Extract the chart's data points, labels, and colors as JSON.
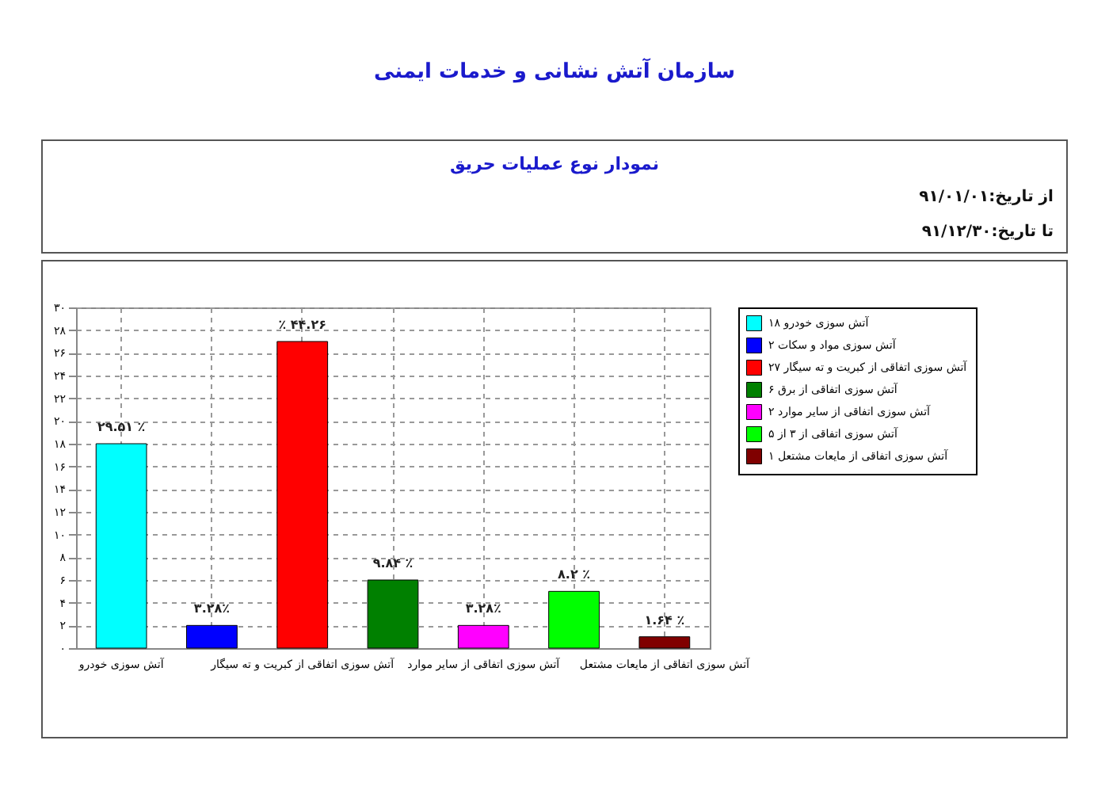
{
  "chart_data": {
    "type": "bar",
    "title": "نمودار نوع عملیات حریق",
    "annotations": [
      "سازمان آتش نشانی و خدمات ایمنی",
      "از تاریخ:۹۱/۰۱/۰۱",
      "تا تاریخ:۹۱/۱۲/۳۰",
      {
        "text": "۲۹.۵۱ ٪",
        "x": "آتش سوزی خودرو",
        "y": 18
      },
      {
        "text": "۳.۲۸٪",
        "y": 2
      },
      {
        "text": "٪ ۴۴.۲۶",
        "x": "آتش سوزی اتفاقی از کبریت و ته سیگار",
        "y": 27
      },
      {
        "text": "۹.۸۴ ٪",
        "y": 6
      },
      {
        "text": "۳.۲۸٪",
        "x": "آتش سوزی اتفاقی از سایر موارد",
        "y": 2
      },
      {
        "text": "۸.۲ ٪",
        "y": 5
      },
      {
        "text": "۱.۶۴ ٪",
        "x": "آتش سوزی اتفاقی از مایعات مشتعل",
        "y": 1
      }
    ],
    "categories": [
      "آتش سوزی خودرو",
      null,
      "آتش سوزی اتفاقی از کبریت و ته سیگار",
      null,
      "آتش سوزی اتفاقی از سایر موارد",
      null,
      "آتش سوزی اتفاقی از مایعات مشتعل"
    ],
    "series": [
      {
        "name": "آتش سوزی خودرو ۱۸",
        "color": "#00ffff",
        "values": [
          18,
          null,
          null,
          null,
          null,
          null,
          null
        ]
      },
      {
        "name": "آتش سوزی مواد و سکات ۲",
        "color": "#0000ff",
        "values": [
          null,
          2,
          null,
          null,
          null,
          null,
          null
        ]
      },
      {
        "name": "آتش سوزی اتفاقی از کبریت و ته سیگار ۲۷",
        "color": "#ff0000",
        "values": [
          null,
          null,
          27,
          null,
          null,
          null,
          null
        ]
      },
      {
        "name": "آتش سوزی اتفاقی از برق ۶",
        "color": "#008000",
        "values": [
          null,
          null,
          null,
          6,
          null,
          null,
          null
        ]
      },
      {
        "name": "آتش سوزی اتفاقی از سایر موارد ۲",
        "color": "#ff00ff",
        "values": [
          null,
          null,
          null,
          null,
          2,
          null,
          null
        ]
      },
      {
        "name": "آتش سوزی اتفاقی از ۳ از ۵",
        "color": "#00ff00",
        "values": [
          null,
          null,
          null,
          null,
          null,
          5,
          null
        ]
      },
      {
        "name": "آتش سوزی اتفاقی از مایعات مشتعل ۱",
        "color": "#800000",
        "values": [
          null,
          null,
          null,
          null,
          null,
          null,
          1
        ]
      }
    ],
    "ylim": [
      0,
      30
    ],
    "yticks": [
      {
        "value": 0,
        "label": "۰"
      },
      {
        "value": 2,
        "label": "۲"
      },
      {
        "value": 4,
        "label": "۴"
      },
      {
        "value": 6,
        "label": "۶"
      },
      {
        "value": 8,
        "label": "۸"
      },
      {
        "value": 10,
        "label": "۱۰"
      },
      {
        "value": 12,
        "label": "۱۲"
      },
      {
        "value": 14,
        "label": "۱۴"
      },
      {
        "value": 16,
        "label": "۱۶"
      },
      {
        "value": 18,
        "label": "۱۸"
      },
      {
        "value": 20,
        "label": "۲۰"
      },
      {
        "value": 22,
        "label": "۲۲"
      },
      {
        "value": 24,
        "label": "۲۴"
      },
      {
        "value": 26,
        "label": "۲۶"
      },
      {
        "value": 28,
        "label": "۲۸"
      },
      {
        "value": 30,
        "label": "۳۰"
      }
    ],
    "grid": true,
    "legend": "top right"
  }
}
